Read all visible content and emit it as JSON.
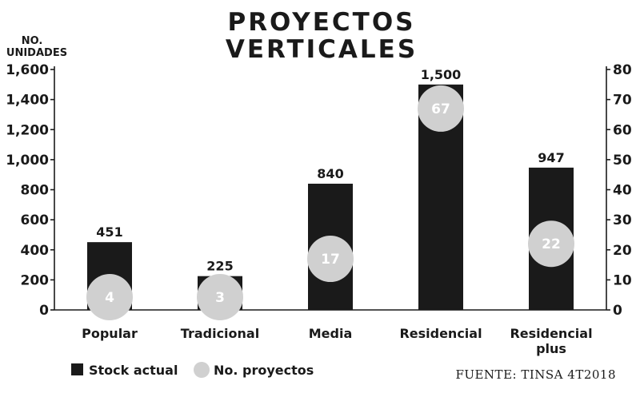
{
  "chart_data": {
    "type": "bar",
    "title_line1": "PROYECTOS",
    "title_line2": "VERTICALES",
    "ylabel_line1": "NO.",
    "ylabel_line2": "UNIDADES",
    "categories": [
      {
        "line1": "Popular",
        "line2": ""
      },
      {
        "line1": "Tradicional",
        "line2": ""
      },
      {
        "line1": "Media",
        "line2": ""
      },
      {
        "line1": "Residencial",
        "line2": ""
      },
      {
        "line1": "Residencial",
        "line2": "plus"
      }
    ],
    "series": [
      {
        "name": "Stock actual",
        "axis": "left",
        "values": [
          451,
          225,
          840,
          1500,
          947
        ],
        "value_labels": [
          "451",
          "225",
          "840",
          "1,500",
          "947"
        ]
      },
      {
        "name": "No. proyectos",
        "axis": "right",
        "values": [
          4,
          3,
          17,
          67,
          22
        ],
        "value_labels": [
          "4",
          "3",
          "17",
          "67",
          "22"
        ]
      }
    ],
    "ylim_left": [
      0,
      1600
    ],
    "ylim_right": [
      0,
      80
    ],
    "yticks_left": [
      "0",
      "200",
      "400",
      "600",
      "800",
      "1,000",
      "1,200",
      "1,400",
      "1,600"
    ],
    "yticks_right": [
      "0",
      "10",
      "20",
      "30",
      "40",
      "50",
      "60",
      "70",
      "80"
    ],
    "grid": false,
    "legend_position": "bottom-left",
    "source": "FUENTE: TINSA 4T2018",
    "colors": {
      "bar": "#1a1a1a",
      "dot": "#d0d0d0",
      "axis": "#1a1a1a",
      "dot_text": "#ffffff"
    }
  }
}
